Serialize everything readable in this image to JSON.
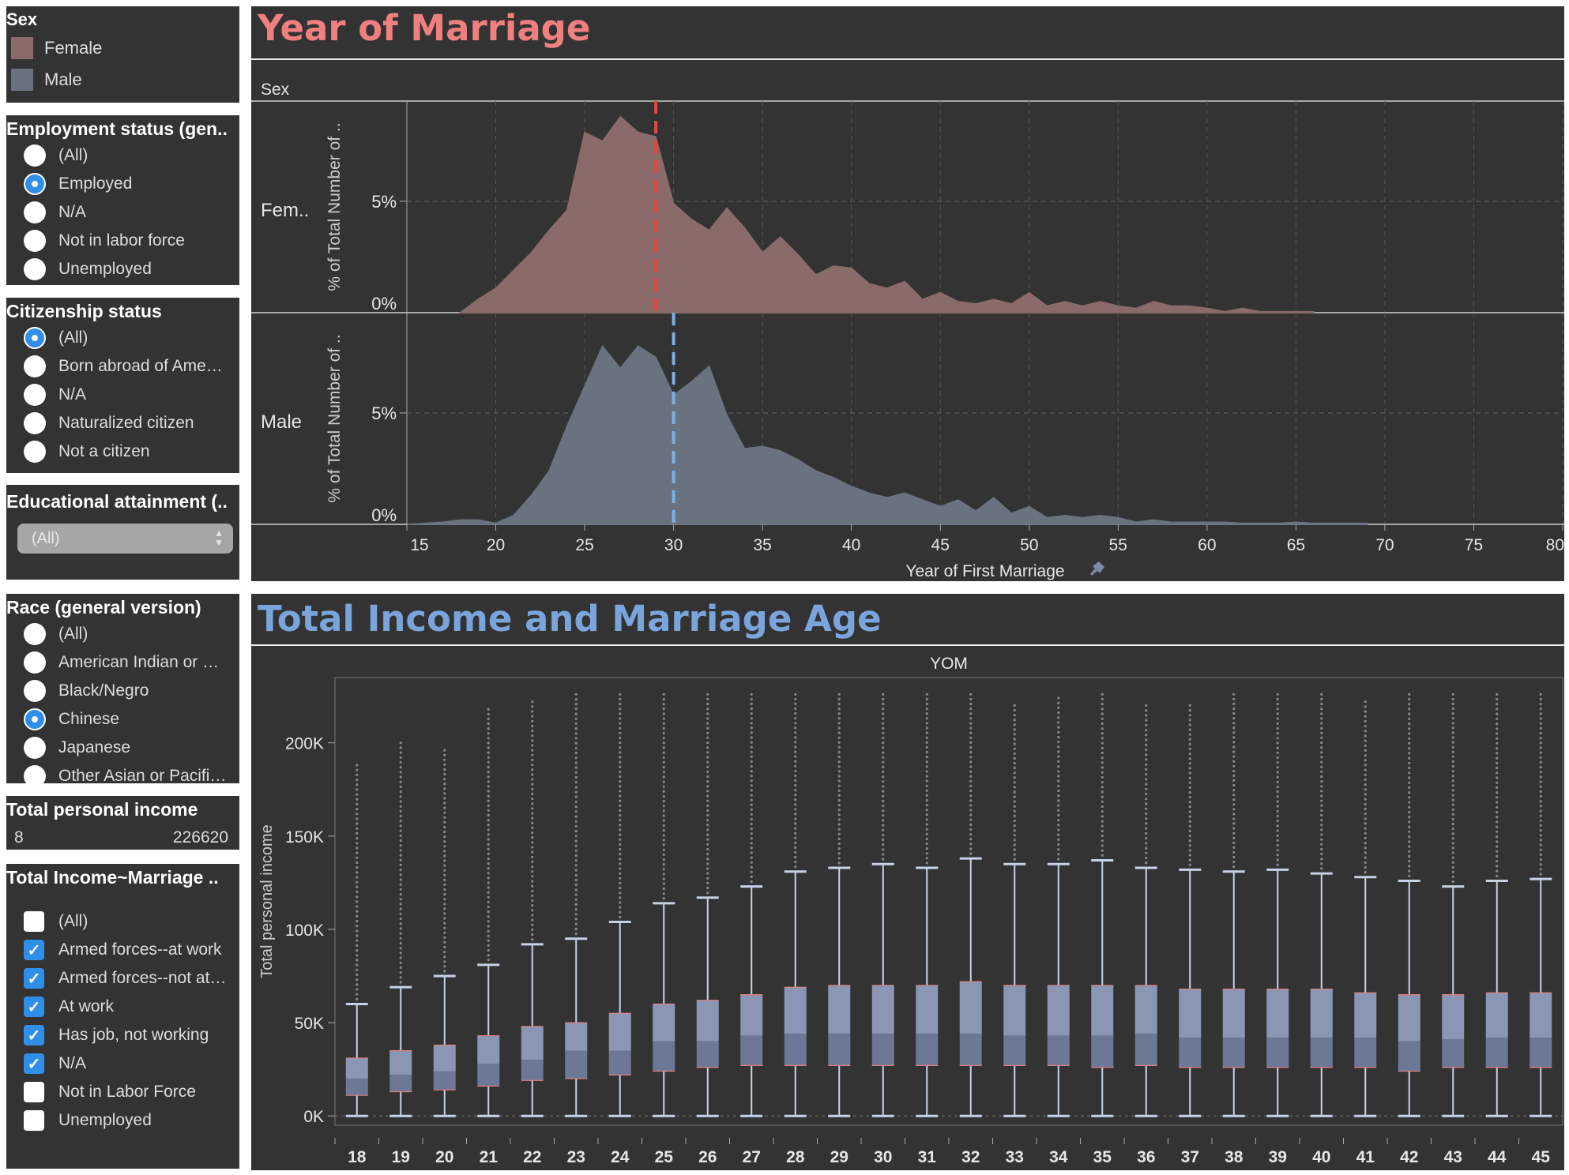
{
  "legend": {
    "title": "Sex",
    "items": [
      {
        "label": "Female",
        "color": "#8b6a6a"
      },
      {
        "label": "Male",
        "color": "#6a7280"
      }
    ]
  },
  "employment": {
    "title": "Employment status (gen..",
    "options": [
      {
        "label": "(All)",
        "selected": false
      },
      {
        "label": "Employed",
        "selected": true
      },
      {
        "label": "N/A",
        "selected": false
      },
      {
        "label": "Not in labor force",
        "selected": false
      },
      {
        "label": "Unemployed",
        "selected": false
      }
    ]
  },
  "citizenship": {
    "title": "Citizenship status",
    "options": [
      {
        "label": "(All)",
        "selected": true
      },
      {
        "label": "Born abroad of Ame…",
        "selected": false
      },
      {
        "label": "N/A",
        "selected": false
      },
      {
        "label": "Naturalized citizen",
        "selected": false
      },
      {
        "label": "Not a citizen",
        "selected": false
      }
    ]
  },
  "education": {
    "title": "Educational attainment (..",
    "value": "(All)"
  },
  "race": {
    "title": "Race (general version)",
    "options": [
      {
        "label": "(All)",
        "selected": false
      },
      {
        "label": "American Indian or …",
        "selected": false
      },
      {
        "label": "Black/Negro",
        "selected": false
      },
      {
        "label": "Chinese",
        "selected": true
      },
      {
        "label": "Japanese",
        "selected": false
      },
      {
        "label": "Other Asian or Pacifi…",
        "selected": false
      }
    ]
  },
  "income_filter": {
    "title": "Total personal income",
    "min": "8",
    "max": "226620"
  },
  "work_filter": {
    "title": "Total Income~Marriage ..",
    "options": [
      {
        "label": "(All)",
        "checked": false
      },
      {
        "label": "Armed forces--at work",
        "checked": true
      },
      {
        "label": "Armed forces--not at…",
        "checked": true
      },
      {
        "label": "At work",
        "checked": true
      },
      {
        "label": "Has job, not working",
        "checked": true
      },
      {
        "label": "N/A",
        "checked": true
      },
      {
        "label": "Not in Labor Force",
        "checked": false
      },
      {
        "label": "Unemployed",
        "checked": false
      }
    ]
  },
  "dash1": {
    "title": "Year of Marriage",
    "title_color": "#f08080",
    "header": "Sex",
    "row_labels": [
      "Fem..",
      "Male"
    ],
    "ytitle": "% of Total Number of ..",
    "xtitle": "Year of First Marriage"
  },
  "dash2": {
    "title": "Total Income and Marriage Age",
    "title_color": "#7aa5dc",
    "header": "YOM",
    "ytitle": "Total personal income"
  },
  "chart_data": [
    {
      "type": "area",
      "x_axis": {
        "label": "Year of First Marriage",
        "range": [
          15,
          80
        ],
        "ticks": [
          15,
          20,
          25,
          30,
          35,
          40,
          45,
          50,
          55,
          60,
          65,
          70,
          75,
          80
        ]
      },
      "y_axis": {
        "label": "% of Total Number of ..",
        "ticks": [
          "0%",
          "5%"
        ],
        "range": [
          0,
          9.5
        ]
      },
      "grid": true,
      "series": [
        {
          "name": "Female",
          "color": "#8b6a6a",
          "median_color": "#e04848",
          "median": 29,
          "x": [
            18,
            19,
            20,
            21,
            22,
            23,
            24,
            25,
            26,
            27,
            28,
            29,
            30,
            31,
            32,
            33,
            34,
            35,
            36,
            37,
            38,
            39,
            40,
            41,
            42,
            43,
            44,
            45,
            46,
            47,
            48,
            49,
            50,
            51,
            52,
            53,
            54,
            55,
            56,
            57,
            58,
            59,
            60,
            61,
            62,
            63,
            64,
            65,
            66
          ],
          "y": [
            0,
            0.6,
            1.1,
            1.9,
            2.7,
            3.7,
            4.6,
            8.1,
            7.7,
            8.8,
            8.1,
            7.9,
            4.9,
            4.2,
            3.7,
            4.7,
            3.8,
            2.7,
            3.4,
            2.6,
            1.7,
            2.1,
            2.0,
            1.3,
            1.1,
            1.4,
            0.6,
            0.9,
            0.5,
            0.4,
            0.6,
            0.4,
            0.9,
            0.3,
            0.5,
            0.3,
            0.5,
            0.3,
            0.2,
            0.5,
            0.3,
            0.3,
            0.2,
            0.05,
            0.2,
            0.05,
            0.05,
            0.05,
            0.05
          ]
        },
        {
          "name": "Male",
          "color": "#6a7280",
          "median_color": "#7ab0e8",
          "median": 30,
          "x": [
            15,
            16,
            17,
            18,
            19,
            20,
            21,
            22,
            23,
            24,
            25,
            26,
            27,
            28,
            29,
            30,
            31,
            32,
            33,
            34,
            35,
            36,
            37,
            38,
            39,
            40,
            41,
            42,
            43,
            44,
            45,
            46,
            47,
            48,
            49,
            50,
            51,
            52,
            53,
            54,
            55,
            56,
            57,
            58,
            59,
            60,
            61,
            62,
            63,
            64,
            65,
            66,
            67,
            68,
            69
          ],
          "y": [
            0,
            0.05,
            0.1,
            0.2,
            0.2,
            0.05,
            0.4,
            1.3,
            2.4,
            4.4,
            6.2,
            8.0,
            7.0,
            8.0,
            7.5,
            5.8,
            6.4,
            7.1,
            4.9,
            3.4,
            3.5,
            3.3,
            2.9,
            2.4,
            2.1,
            1.7,
            1.4,
            1.2,
            1.4,
            1.1,
            0.8,
            1.1,
            0.6,
            1.2,
            0.5,
            0.8,
            0.3,
            0.4,
            0.3,
            0.4,
            0.3,
            0.1,
            0.2,
            0.1,
            0.1,
            0.1,
            0.1,
            0.05,
            0.05,
            0.05,
            0.1,
            0.05,
            0.05,
            0.05,
            0.05
          ]
        }
      ]
    },
    {
      "type": "box",
      "x_axis": {
        "label": "YOM",
        "categories": [
          18,
          19,
          20,
          21,
          22,
          23,
          24,
          25,
          26,
          27,
          28,
          29,
          30,
          31,
          32,
          33,
          34,
          35,
          36,
          37,
          38,
          39,
          40,
          41,
          42,
          43,
          44,
          45
        ]
      },
      "y_axis": {
        "label": "Total personal income",
        "ticks": [
          "0K",
          "50K",
          "100K",
          "150K",
          "200K"
        ],
        "range": [
          -5000,
          235000
        ]
      },
      "box_color": "#8a96b4",
      "whisker_color": "#c8d2e6",
      "median_color": "#e08080",
      "lower_whisker": [
        0,
        0,
        0,
        0,
        0,
        0,
        0,
        0,
        0,
        0,
        0,
        0,
        0,
        0,
        0,
        0,
        0,
        0,
        0,
        0,
        0,
        0,
        0,
        0,
        0,
        0,
        0,
        0
      ],
      "q1": [
        11000,
        13000,
        14000,
        16000,
        19000,
        20000,
        22000,
        24000,
        26000,
        27000,
        27000,
        27000,
        27000,
        27000,
        27000,
        27000,
        27000,
        26000,
        27000,
        26000,
        26000,
        26000,
        26000,
        26000,
        24000,
        26000,
        26000,
        26000
      ],
      "median": [
        20000,
        22000,
        24000,
        28000,
        30000,
        35000,
        35000,
        40000,
        40000,
        43000,
        44000,
        44000,
        44000,
        44000,
        44000,
        43000,
        43000,
        43000,
        44000,
        42000,
        42000,
        42000,
        42000,
        42000,
        40000,
        41000,
        42000,
        42000
      ],
      "q3": [
        31000,
        35000,
        38000,
        43000,
        48000,
        50000,
        55000,
        60000,
        62000,
        65000,
        69000,
        70000,
        70000,
        70000,
        72000,
        70000,
        70000,
        70000,
        70000,
        68000,
        68000,
        68000,
        68000,
        66000,
        65000,
        65000,
        66000,
        66000
      ],
      "upper_whisker": [
        60000,
        69000,
        75000,
        81000,
        92000,
        95000,
        104000,
        114000,
        117000,
        123000,
        131000,
        133000,
        135000,
        133000,
        138000,
        135000,
        135000,
        137000,
        133000,
        132000,
        131000,
        132000,
        130000,
        128000,
        126000,
        123000,
        126000,
        127000
      ],
      "max_outlier": [
        188000,
        200000,
        196000,
        218000,
        222000,
        226000,
        226000,
        226000,
        226000,
        226000,
        226000,
        226000,
        226000,
        226000,
        226000,
        220000,
        224000,
        226000,
        220000,
        220000,
        226000,
        226000,
        226000,
        222000,
        226000,
        226000,
        226000,
        226000
      ]
    }
  ]
}
